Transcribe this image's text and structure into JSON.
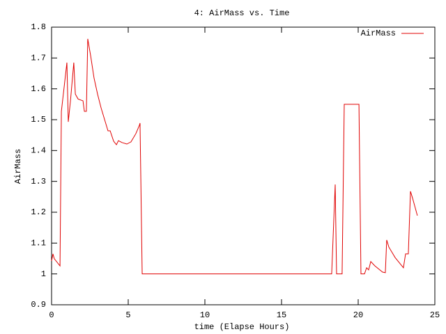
{
  "chart_data": {
    "type": "line",
    "title": "4: AirMass vs. Time",
    "x_label": "time (Elapse Hours)",
    "y_label": "AirMass",
    "x": [
      0,
      0.09,
      0.18,
      0.55,
      0.64,
      1.0,
      1.09,
      1.23,
      1.45,
      1.55,
      1.73,
      2.05,
      2.14,
      2.27,
      2.36,
      2.55,
      2.77,
      3.0,
      3.23,
      3.68,
      3.82,
      4.05,
      4.23,
      4.36,
      4.59,
      4.91,
      5.18,
      5.5,
      5.73,
      5.77,
      5.91,
      18.27,
      18.5,
      18.59,
      18.95,
      19.09,
      20.05,
      20.18,
      20.41,
      20.55,
      20.68,
      20.82,
      21.09,
      21.41,
      21.59,
      21.77,
      21.86,
      22.0,
      22.41,
      22.77,
      22.95,
      23.09,
      23.27,
      23.41,
      23.55,
      23.86
    ],
    "series": [
      {
        "name": "AirMass",
        "color": "#e00000",
        "values": [
          1.042,
          1.065,
          1.049,
          1.026,
          1.527,
          1.685,
          1.493,
          1.56,
          1.685,
          1.583,
          1.567,
          1.561,
          1.527,
          1.527,
          1.762,
          1.707,
          1.635,
          1.583,
          1.538,
          1.464,
          1.464,
          1.43,
          1.419,
          1.432,
          1.426,
          1.421,
          1.428,
          1.455,
          1.482,
          1.489,
          1.0,
          1.0,
          1.29,
          1.0,
          1.0,
          1.55,
          1.55,
          1.0,
          1.0,
          1.02,
          1.013,
          1.04,
          1.026,
          1.013,
          1.006,
          1.004,
          1.11,
          1.087,
          1.053,
          1.031,
          1.02,
          1.065,
          1.065,
          1.268,
          1.245,
          1.189
        ]
      }
    ],
    "xlim": [
      0,
      25
    ],
    "xticks": [
      0,
      5,
      10,
      15,
      20,
      25
    ],
    "ylim": [
      0.9,
      1.8
    ],
    "yticks": [
      0.9,
      1,
      1.1,
      1.2,
      1.3,
      1.4,
      1.5,
      1.6,
      1.7,
      1.8
    ],
    "grid": false,
    "legend": "top-right"
  }
}
